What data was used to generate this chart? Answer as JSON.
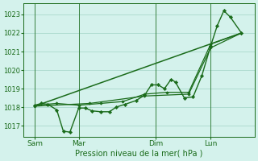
{
  "bg_color": "#d4f2ec",
  "grid_color": "#aad8cc",
  "line_color": "#1a6b1a",
  "ylabel_ticks": [
    1017,
    1018,
    1019,
    1020,
    1021,
    1022,
    1023
  ],
  "ylim": [
    1016.4,
    1023.6
  ],
  "xlabel": "Pression niveau de la mer( hPa )",
  "day_labels": [
    "Sam",
    "Mar",
    "Dim",
    "Lun"
  ],
  "day_positions": [
    0.5,
    2.5,
    6.0,
    8.5
  ],
  "xlim": [
    0,
    10.5
  ],
  "vlines": [
    0.5,
    2.5,
    6.0,
    8.5
  ],
  "series": [
    [
      0.5,
      1018.1,
      0.8,
      1018.2,
      1.1,
      1018.15,
      1.5,
      1017.85,
      1.8,
      1016.7,
      2.1,
      1016.65,
      2.5,
      1017.95,
      2.8,
      1017.95,
      3.1,
      1017.8,
      3.5,
      1017.75,
      3.9,
      1017.75,
      4.2,
      1018.0,
      4.6,
      1018.15,
      5.1,
      1018.35,
      5.5,
      1018.65,
      5.8,
      1019.2,
      6.1,
      1019.2,
      6.4,
      1019.0,
      6.7,
      1019.5,
      6.9,
      1019.35,
      7.3,
      1018.5,
      7.7,
      1018.55,
      8.1,
      1019.7,
      8.5,
      1021.3,
      8.8,
      1022.4,
      9.1,
      1023.2,
      9.4,
      1022.85,
      9.9,
      1022.0
    ],
    [
      0.5,
      1018.1,
      1.5,
      1018.2,
      2.5,
      1018.1,
      3.5,
      1018.2,
      4.5,
      1018.3,
      5.5,
      1018.7,
      6.5,
      1018.8,
      7.5,
      1018.8,
      8.5,
      1021.4,
      9.9,
      1022.0
    ],
    [
      0.5,
      1018.05,
      3.0,
      1018.2,
      5.5,
      1018.6,
      7.5,
      1018.7,
      8.5,
      1021.2,
      9.9,
      1022.0
    ],
    [
      0.5,
      1018.05,
      9.9,
      1022.0
    ]
  ],
  "series_styles": [
    {
      "lw": 1.0,
      "marker": "D",
      "ms": 2.2,
      "mew": 0.4
    },
    {
      "lw": 0.9,
      "marker": "D",
      "ms": 1.8,
      "mew": 0.4
    },
    {
      "lw": 0.9,
      "marker": "D",
      "ms": 1.8,
      "mew": 0.4
    },
    {
      "lw": 1.1,
      "marker": null,
      "ms": 0,
      "mew": 0
    }
  ]
}
